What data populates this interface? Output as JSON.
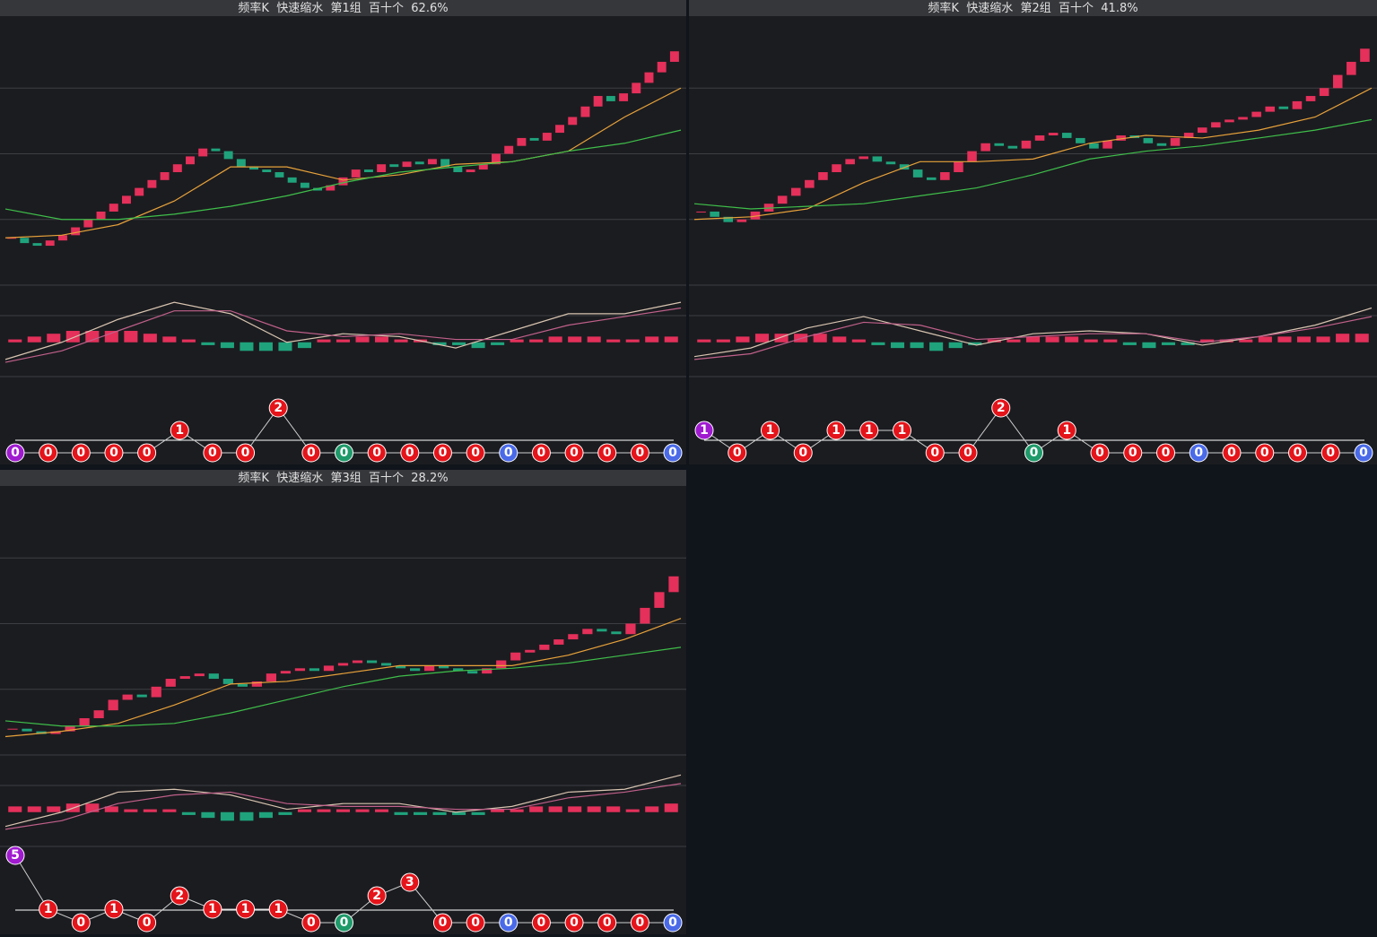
{
  "colors": {
    "up": "#e4305a",
    "down": "#1fa37c",
    "ma_fast": "#e8a23a",
    "ma_slow": "#3fbf4a",
    "dif": "#d8c4b0",
    "dea": "#c0608a",
    "ball_line": "#cfcfcf"
  },
  "panels": [
    {
      "title": "频率K  快速缩水  第1组  百十个  62.6%",
      "price_ylim": [
        0,
        100
      ],
      "price": [
        18,
        16,
        15,
        17,
        19,
        22,
        25,
        28,
        31,
        34,
        37,
        40,
        43,
        46,
        49,
        52,
        51,
        48,
        45,
        44,
        43,
        41,
        39,
        37,
        36,
        38,
        41,
        44,
        43,
        46,
        45,
        47,
        46,
        48,
        45,
        43,
        44,
        46,
        50,
        53,
        56,
        55,
        58,
        61,
        64,
        68,
        72,
        70,
        73,
        77,
        81,
        85,
        89
      ],
      "ma_fast": [
        18,
        19,
        23,
        32,
        45,
        45,
        40,
        42,
        46,
        47,
        51,
        64,
        75
      ],
      "ma_slow": [
        29,
        25,
        25,
        27,
        30,
        34,
        39,
        43,
        45,
        47,
        51,
        54,
        59
      ],
      "macd_ylim": [
        -12,
        20
      ],
      "macd_hist": [
        1,
        2,
        3,
        4,
        4,
        4,
        4,
        3,
        2,
        1,
        -1,
        -2,
        -3,
        -3,
        -3,
        -2,
        1,
        1,
        2,
        2,
        1,
        1,
        -1,
        -1,
        -2,
        -1,
        1,
        1,
        2,
        2,
        2,
        1,
        1,
        2,
        2
      ],
      "dif": [
        -6,
        0,
        8,
        14,
        10,
        0,
        3,
        2,
        -2,
        4,
        10,
        10,
        14
      ],
      "dea": [
        -7,
        -3,
        4,
        11,
        11,
        4,
        2,
        3,
        1,
        1,
        6,
        9,
        12
      ],
      "ball_ylim": [
        0,
        3
      ],
      "balls": [
        0,
        0,
        0,
        0,
        0,
        1,
        0,
        0,
        2,
        0,
        0,
        0,
        0,
        0,
        0,
        0,
        0,
        0,
        0,
        0,
        0
      ],
      "ball_colors": [
        "#a01ad0",
        "#e4141a",
        "#e4141a",
        "#e4141a",
        "#e4141a",
        "#e4141a",
        "#e4141a",
        "#e4141a",
        "#e4141a",
        "#e4141a",
        "#1f9a6a",
        "#e4141a",
        "#e4141a",
        "#e4141a",
        "#e4141a",
        "#4a6ae8",
        "#e4141a",
        "#e4141a",
        "#e4141a",
        "#e4141a",
        "#4a6ae8"
      ]
    },
    {
      "title": "频率K  快速缩水  第2组  百十个  41.8%",
      "price_ylim": [
        0,
        100
      ],
      "price": [
        28,
        26,
        24,
        25,
        28,
        31,
        34,
        37,
        40,
        43,
        46,
        48,
        49,
        47,
        46,
        44,
        41,
        40,
        43,
        47,
        51,
        54,
        53,
        52,
        55,
        57,
        58,
        56,
        54,
        52,
        55,
        57,
        56,
        54,
        53,
        56,
        58,
        60,
        62,
        63,
        64,
        66,
        68,
        67,
        70,
        72,
        75,
        80,
        85,
        90
      ],
      "ma_fast": [
        25,
        26,
        29,
        39,
        47,
        47,
        48,
        54,
        57,
        56,
        59,
        64,
        75
      ],
      "ma_slow": [
        31,
        29,
        30,
        31,
        34,
        37,
        42,
        48,
        51,
        53,
        56,
        59,
        63
      ],
      "macd_ylim": [
        -12,
        20
      ],
      "macd_hist": [
        1,
        1,
        2,
        3,
        3,
        3,
        3,
        2,
        1,
        -1,
        -2,
        -2,
        -3,
        -2,
        -1,
        1,
        1,
        2,
        2,
        2,
        1,
        1,
        -1,
        -2,
        -1,
        -1,
        1,
        1,
        1,
        2,
        2,
        2,
        2,
        3,
        3
      ],
      "dif": [
        -5,
        -2,
        5,
        9,
        4,
        -1,
        3,
        4,
        3,
        -1,
        2,
        6,
        12
      ],
      "dea": [
        -6,
        -4,
        2,
        7,
        6,
        1,
        2,
        3,
        3,
        0,
        2,
        5,
        9
      ],
      "ball_ylim": [
        0,
        3
      ],
      "balls": [
        1,
        0,
        1,
        0,
        1,
        1,
        1,
        0,
        0,
        2,
        0,
        1,
        0,
        0,
        0,
        0,
        0,
        0,
        0,
        0,
        0
      ],
      "ball_colors": [
        "#a01ad0",
        "#e4141a",
        "#e4141a",
        "#e4141a",
        "#e4141a",
        "#e4141a",
        "#e4141a",
        "#e4141a",
        "#e4141a",
        "#e4141a",
        "#1f9a6a",
        "#e4141a",
        "#e4141a",
        "#e4141a",
        "#e4141a",
        "#4a6ae8",
        "#e4141a",
        "#e4141a",
        "#e4141a",
        "#e4141a",
        "#4a6ae8"
      ]
    },
    {
      "title": "频率K  快速缩水  第3组  百十个  28.2%",
      "price_ylim": [
        0,
        100
      ],
      "price": [
        10,
        9,
        8,
        9,
        11,
        14,
        17,
        21,
        23,
        22,
        26,
        29,
        30,
        31,
        29,
        27,
        26,
        28,
        31,
        32,
        33,
        32,
        34,
        35,
        36,
        35,
        34,
        33,
        32,
        34,
        33,
        32,
        31,
        33,
        36,
        39,
        40,
        42,
        44,
        46,
        48,
        47,
        46,
        50,
        56,
        62,
        68
      ],
      "ma_fast": [
        7,
        9,
        12,
        19,
        27,
        28,
        31,
        34,
        34,
        34,
        38,
        44,
        52
      ],
      "ma_slow": [
        13,
        11,
        11,
        12,
        16,
        21,
        26,
        30,
        32,
        33,
        35,
        38,
        41
      ],
      "macd_ylim": [
        -12,
        20
      ],
      "macd_hist": [
        2,
        2,
        2,
        3,
        3,
        2,
        1,
        1,
        1,
        -1,
        -2,
        -3,
        -3,
        -2,
        -1,
        1,
        1,
        1,
        1,
        1,
        -1,
        -1,
        -1,
        -1,
        -1,
        1,
        1,
        2,
        2,
        2,
        2,
        2,
        1,
        2,
        3
      ],
      "dif": [
        -5,
        0,
        7,
        8,
        6,
        1,
        3,
        3,
        0,
        2,
        7,
        8,
        13
      ],
      "dea": [
        -6,
        -3,
        3,
        6,
        7,
        3,
        2,
        2,
        1,
        1,
        5,
        7,
        10
      ],
      "ball_ylim": [
        0,
        5
      ],
      "balls": [
        5,
        1,
        0,
        1,
        0,
        2,
        1,
        1,
        1,
        0,
        0,
        2,
        3,
        0,
        0,
        0,
        0,
        0,
        0,
        0,
        0
      ],
      "ball_colors": [
        "#a01ad0",
        "#e4141a",
        "#e4141a",
        "#e4141a",
        "#e4141a",
        "#e4141a",
        "#e4141a",
        "#e4141a",
        "#e4141a",
        "#e4141a",
        "#1f9a6a",
        "#e4141a",
        "#e4141a",
        "#e4141a",
        "#e4141a",
        "#4a6ae8",
        "#e4141a",
        "#e4141a",
        "#e4141a",
        "#e4141a",
        "#4a6ae8"
      ]
    }
  ]
}
